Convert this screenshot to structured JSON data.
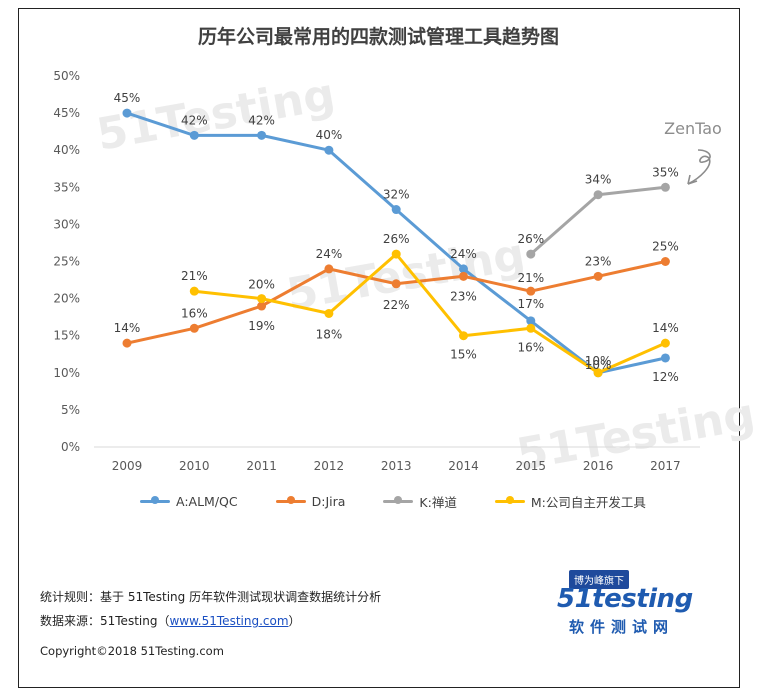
{
  "chart_data": {
    "type": "line",
    "title": "历年公司最常用的四款测试管理工具趋势图",
    "categories": [
      "2009",
      "2010",
      "2011",
      "2012",
      "2013",
      "2014",
      "2015",
      "2016",
      "2017"
    ],
    "ylim": [
      0,
      50
    ],
    "yticks": [
      "0%",
      "5%",
      "10%",
      "15%",
      "20%",
      "25%",
      "30%",
      "35%",
      "40%",
      "45%",
      "50%"
    ],
    "grid": false,
    "legend": "bottom",
    "series": [
      {
        "name": "A:ALM/QC",
        "color": "#5b9bd5",
        "values": [
          45,
          42,
          42,
          40,
          32,
          24,
          17,
          10,
          12
        ],
        "labels": [
          "45%",
          "42%",
          "42%",
          "40%",
          "32%",
          "24%",
          "17%",
          "10%",
          "12%"
        ]
      },
      {
        "name": "D:Jira",
        "color": "#ed7d31",
        "values": [
          14,
          16,
          19,
          24,
          22,
          23,
          21,
          23,
          25
        ],
        "labels": [
          "14%",
          "16%",
          "19%",
          "24%",
          "22%",
          "23%",
          "21%",
          "23%",
          "25%"
        ]
      },
      {
        "name": "K:禅道",
        "color": "#a5a5a5",
        "values": [
          null,
          null,
          null,
          null,
          null,
          null,
          26,
          34,
          35
        ],
        "labels": [
          null,
          null,
          null,
          null,
          null,
          null,
          "26%",
          "34%",
          "35%"
        ]
      },
      {
        "name": "M:公司自主开发工具",
        "color": "#ffc000",
        "values": [
          null,
          21,
          20,
          18,
          26,
          15,
          16,
          10,
          14
        ],
        "labels": [
          null,
          "21%",
          "20%",
          "18%",
          "26%",
          "15%",
          "16%",
          "10%",
          "14%"
        ]
      }
    ],
    "annotations": [
      {
        "text": "ZenTao"
      }
    ],
    "watermark": "51Testing"
  },
  "footer": {
    "method_label": "统计规则：基于 51Testing 历年软件测试现状调查数据统计分析",
    "source_prefix": "数据来源：51Testing（",
    "source_link": "www.51Testing.com",
    "source_suffix": "）",
    "copyright": "Copyright©2018 51Testing.com"
  },
  "logo": {
    "tag": "博为峰旗下",
    "name_main": "51testing",
    "name_sub": "软件测试网"
  }
}
